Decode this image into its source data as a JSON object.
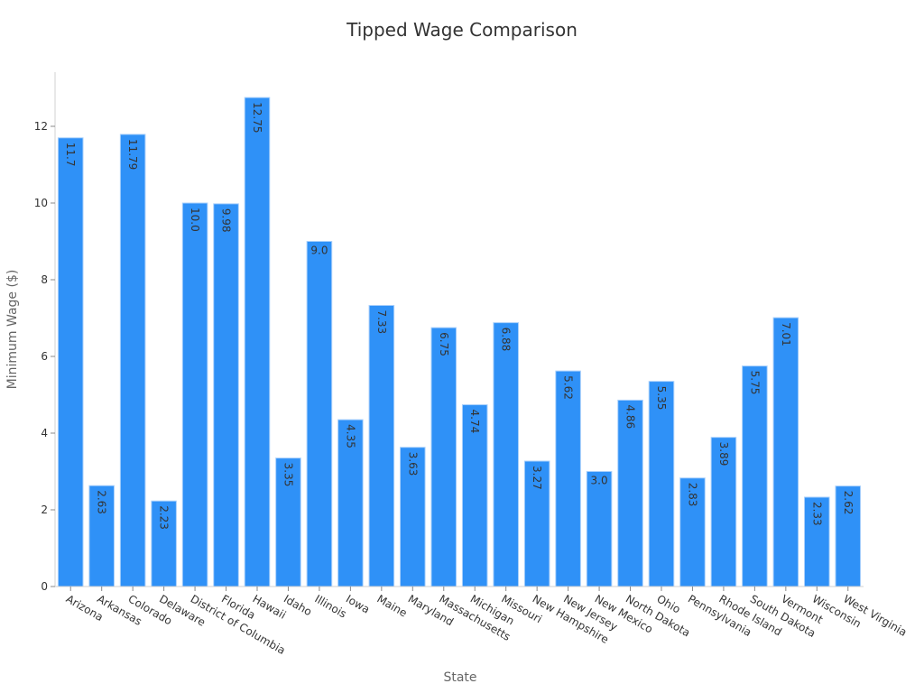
{
  "chart_data": {
    "type": "bar",
    "title": "Tipped Wage Comparison",
    "xlabel": "State",
    "ylabel": "Minimum Wage ($)",
    "ylim": [
      0,
      13.4
    ],
    "yticks": [
      0,
      2,
      4,
      6,
      8,
      10,
      12
    ],
    "grid": false,
    "legend": null,
    "bar_color": "#2f91f7",
    "bar_edge_color": "#a9d0fb",
    "categories": [
      "Arizona",
      "Arkansas",
      "Colorado",
      "Delaware",
      "District of Columbia",
      "Florida",
      "Hawaii",
      "Idaho",
      "Illinois",
      "Iowa",
      "Maine",
      "Maryland",
      "Massachusetts",
      "Michigan",
      "Missouri",
      "New Hampshire",
      "New Jersey",
      "New Mexico",
      "North Dakota",
      "Ohio",
      "Pennsylvania",
      "Rhode Island",
      "South Dakota",
      "Vermont",
      "Wisconsin",
      "West Virginia"
    ],
    "values": [
      11.7,
      2.63,
      11.79,
      2.23,
      10.0,
      9.98,
      12.75,
      3.35,
      9.0,
      4.35,
      7.33,
      3.63,
      6.75,
      4.74,
      6.88,
      3.27,
      5.62,
      3.0,
      4.86,
      5.35,
      2.83,
      3.89,
      5.75,
      7.01,
      2.33,
      2.62
    ],
    "value_labels": [
      "11.7",
      "2.63",
      "11.79",
      "2.23",
      "10.0",
      "9.98",
      "12.75",
      "3.35",
      "9.0",
      "4.35",
      "7.33",
      "3.63",
      "6.75",
      "4.74",
      "6.88",
      "3.27",
      "5.62",
      "3.0",
      "4.86",
      "5.35",
      "2.83",
      "3.89",
      "5.75",
      "7.01",
      "2.33",
      "2.62"
    ],
    "horizontal_labels": [
      "9.0",
      "3.0"
    ]
  }
}
